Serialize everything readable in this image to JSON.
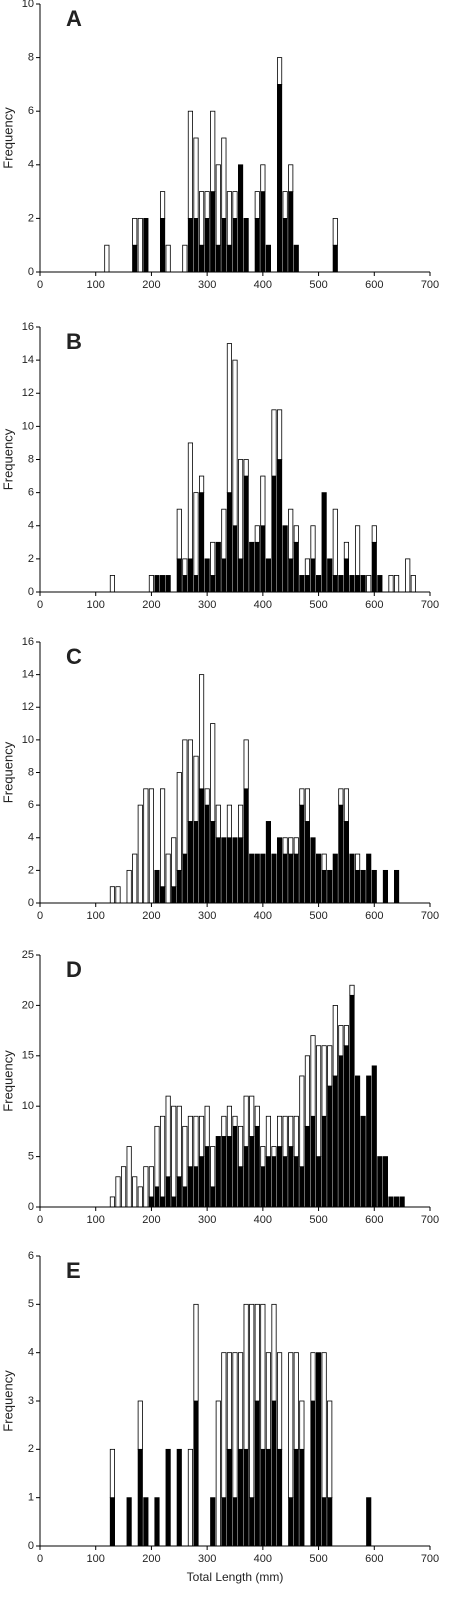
{
  "chart_data": [
    {
      "type": "bar",
      "title": "A",
      "y_label": "Frequency",
      "x": [
        120,
        130,
        140,
        150,
        160,
        170,
        180,
        190,
        200,
        210,
        220,
        230,
        240,
        250,
        260,
        270,
        280,
        290,
        300,
        310,
        320,
        330,
        340,
        350,
        360,
        370,
        380,
        390,
        400,
        410,
        420,
        430,
        440,
        450,
        460,
        470,
        480,
        490,
        500,
        510,
        520,
        530
      ],
      "series": [
        {
          "color": "#000000",
          "values": [
            0,
            0,
            0,
            0,
            0,
            1,
            0,
            2,
            0,
            0,
            2,
            0,
            0,
            0,
            0,
            2,
            2,
            1,
            2,
            3,
            1,
            2,
            1,
            2,
            4,
            2,
            0,
            2,
            3,
            1,
            0,
            7,
            2,
            3,
            1,
            0,
            0,
            0,
            0,
            0,
            0,
            1
          ]
        },
        {
          "color": "#ffffff",
          "values": [
            1,
            0,
            0,
            0,
            0,
            1,
            2,
            0,
            0,
            0,
            1,
            1,
            0,
            0,
            1,
            4,
            3,
            2,
            1,
            3,
            3,
            3,
            2,
            1,
            0,
            0,
            0,
            1,
            1,
            0,
            0,
            1,
            1,
            1,
            0,
            0,
            0,
            0,
            0,
            0,
            0,
            1
          ]
        }
      ],
      "xlim": [
        0,
        700
      ],
      "xticks": [
        0,
        100,
        200,
        300,
        400,
        500,
        600,
        700
      ],
      "ylim": [
        0,
        10
      ],
      "yticks": [
        0,
        2,
        4,
        6,
        8,
        10
      ]
    },
    {
      "type": "bar",
      "title": "B",
      "y_label": "Frequency",
      "x": [
        130,
        140,
        150,
        160,
        170,
        180,
        190,
        200,
        210,
        220,
        230,
        240,
        250,
        260,
        270,
        280,
        290,
        300,
        310,
        320,
        330,
        340,
        350,
        360,
        370,
        380,
        390,
        400,
        410,
        420,
        430,
        440,
        450,
        460,
        470,
        480,
        490,
        500,
        510,
        520,
        530,
        540,
        550,
        560,
        570,
        580,
        590,
        600,
        610,
        620,
        630,
        640,
        650,
        660,
        670
      ],
      "series": [
        {
          "color": "#000000",
          "values": [
            0,
            0,
            0,
            0,
            0,
            0,
            0,
            0,
            1,
            1,
            1,
            0,
            2,
            1,
            2,
            1,
            6,
            2,
            1,
            3,
            2,
            6,
            4,
            2,
            7,
            3,
            3,
            4,
            2,
            7,
            8,
            4,
            2,
            3,
            1,
            1,
            2,
            1,
            6,
            2,
            1,
            1,
            2,
            1,
            1,
            1,
            0,
            3,
            1,
            0,
            0,
            0,
            0,
            0,
            0
          ]
        },
        {
          "color": "#ffffff",
          "values": [
            1,
            0,
            0,
            0,
            0,
            0,
            0,
            1,
            0,
            0,
            0,
            0,
            3,
            1,
            7,
            5,
            1,
            0,
            2,
            0,
            3,
            9,
            10,
            6,
            1,
            0,
            1,
            3,
            0,
            4,
            3,
            0,
            3,
            1,
            0,
            1,
            2,
            0,
            0,
            0,
            4,
            0,
            1,
            0,
            3,
            0,
            1,
            1,
            0,
            0,
            1,
            1,
            0,
            2,
            1
          ]
        }
      ],
      "xlim": [
        0,
        700
      ],
      "xticks": [
        0,
        100,
        200,
        300,
        400,
        500,
        600,
        700
      ],
      "ylim": [
        0,
        16
      ],
      "yticks": [
        0,
        2,
        4,
        6,
        8,
        10,
        12,
        14,
        16
      ]
    },
    {
      "type": "bar",
      "title": "C",
      "y_label": "Frequency",
      "x": [
        130,
        140,
        150,
        160,
        170,
        180,
        190,
        200,
        210,
        220,
        230,
        240,
        250,
        260,
        270,
        280,
        290,
        300,
        310,
        320,
        330,
        340,
        350,
        360,
        370,
        380,
        390,
        400,
        410,
        420,
        430,
        440,
        450,
        460,
        470,
        480,
        490,
        500,
        510,
        520,
        530,
        540,
        550,
        560,
        570,
        580,
        590,
        600,
        610,
        620,
        630,
        640
      ],
      "series": [
        {
          "color": "#000000",
          "values": [
            0,
            0,
            0,
            0,
            0,
            0,
            0,
            0,
            2,
            1,
            0,
            1,
            2,
            3,
            5,
            5,
            7,
            6,
            5,
            4,
            4,
            4,
            4,
            4,
            7,
            3,
            3,
            3,
            5,
            3,
            4,
            3,
            3,
            3,
            6,
            5,
            4,
            3,
            2,
            2,
            3,
            6,
            5,
            3,
            2,
            2,
            3,
            2,
            0,
            2,
            0,
            2
          ]
        },
        {
          "color": "#ffffff",
          "values": [
            1,
            1,
            0,
            2,
            3,
            6,
            7,
            7,
            0,
            6,
            3,
            3,
            6,
            7,
            5,
            4,
            7,
            1,
            6,
            2,
            0,
            2,
            0,
            2,
            3,
            0,
            0,
            0,
            0,
            0,
            0,
            1,
            1,
            1,
            1,
            2,
            0,
            0,
            1,
            0,
            0,
            1,
            2,
            0,
            1,
            0,
            0,
            0,
            0,
            0,
            0,
            0
          ]
        }
      ],
      "xlim": [
        0,
        700
      ],
      "xticks": [
        0,
        100,
        200,
        300,
        400,
        500,
        600,
        700
      ],
      "ylim": [
        0,
        16
      ],
      "yticks": [
        0,
        2,
        4,
        6,
        8,
        10,
        12,
        14,
        16
      ]
    },
    {
      "type": "bar",
      "title": "D",
      "y_label": "Frequency",
      "x": [
        130,
        140,
        150,
        160,
        170,
        180,
        190,
        200,
        210,
        220,
        230,
        240,
        250,
        260,
        270,
        280,
        290,
        300,
        310,
        320,
        330,
        340,
        350,
        360,
        370,
        380,
        390,
        400,
        410,
        420,
        430,
        440,
        450,
        460,
        470,
        480,
        490,
        500,
        510,
        520,
        530,
        540,
        550,
        560,
        570,
        580,
        590,
        600,
        610,
        620,
        630,
        640,
        650
      ],
      "series": [
        {
          "color": "#000000",
          "values": [
            0,
            0,
            0,
            0,
            0,
            0,
            0,
            1,
            2,
            1,
            3,
            1,
            3,
            2,
            4,
            4,
            5,
            6,
            2,
            7,
            7,
            7,
            8,
            4,
            6,
            7,
            8,
            4,
            5,
            5,
            6,
            5,
            6,
            5,
            4,
            8,
            9,
            5,
            9,
            12,
            13,
            15,
            16,
            21,
            13,
            9,
            13,
            14,
            5,
            5,
            1,
            1,
            1
          ]
        },
        {
          "color": "#ffffff",
          "values": [
            1,
            3,
            4,
            6,
            3,
            2,
            4,
            3,
            6,
            8,
            8,
            9,
            7,
            6,
            5,
            5,
            4,
            4,
            4,
            0,
            2,
            3,
            1,
            4,
            5,
            4,
            2,
            2,
            4,
            1,
            3,
            4,
            3,
            4,
            9,
            7,
            8,
            11,
            7,
            4,
            7,
            3,
            2,
            1,
            0,
            0,
            0,
            0,
            0,
            0,
            0,
            0,
            0
          ]
        }
      ],
      "xlim": [
        0,
        700
      ],
      "xticks": [
        0,
        100,
        200,
        300,
        400,
        500,
        600,
        700
      ],
      "ylim": [
        0,
        25
      ],
      "yticks": [
        0,
        5,
        10,
        15,
        20,
        25
      ]
    },
    {
      "type": "bar",
      "title": "E",
      "y_label": "Frequency",
      "x_label": "Total Length (mm)",
      "x": [
        130,
        140,
        150,
        160,
        170,
        180,
        190,
        200,
        210,
        220,
        230,
        240,
        250,
        260,
        270,
        280,
        290,
        300,
        310,
        320,
        330,
        340,
        350,
        360,
        370,
        380,
        390,
        400,
        410,
        420,
        430,
        440,
        450,
        460,
        470,
        480,
        490,
        500,
        510,
        520,
        530,
        540,
        550,
        560,
        570,
        580,
        590
      ],
      "series": [
        {
          "color": "#000000",
          "values": [
            1,
            0,
            0,
            1,
            0,
            2,
            1,
            0,
            1,
            0,
            2,
            0,
            2,
            0,
            0,
            3,
            0,
            0,
            1,
            0,
            1,
            2,
            1,
            2,
            2,
            1,
            3,
            2,
            2,
            3,
            2,
            0,
            1,
            2,
            2,
            0,
            3,
            4,
            1,
            1,
            0,
            0,
            0,
            0,
            0,
            0,
            1
          ]
        },
        {
          "color": "#ffffff",
          "values": [
            1,
            0,
            0,
            0,
            0,
            1,
            0,
            0,
            0,
            0,
            0,
            0,
            0,
            0,
            2,
            2,
            0,
            0,
            0,
            3,
            3,
            2,
            3,
            2,
            3,
            4,
            2,
            3,
            2,
            2,
            2,
            0,
            3,
            2,
            1,
            0,
            1,
            0,
            3,
            2,
            0,
            0,
            0,
            0,
            0,
            0,
            0
          ]
        }
      ],
      "xlim": [
        0,
        700
      ],
      "xticks": [
        0,
        100,
        200,
        300,
        400,
        500,
        600,
        700
      ],
      "ylim": [
        0,
        6
      ],
      "yticks": [
        0,
        1,
        2,
        3,
        4,
        5,
        6
      ]
    }
  ]
}
